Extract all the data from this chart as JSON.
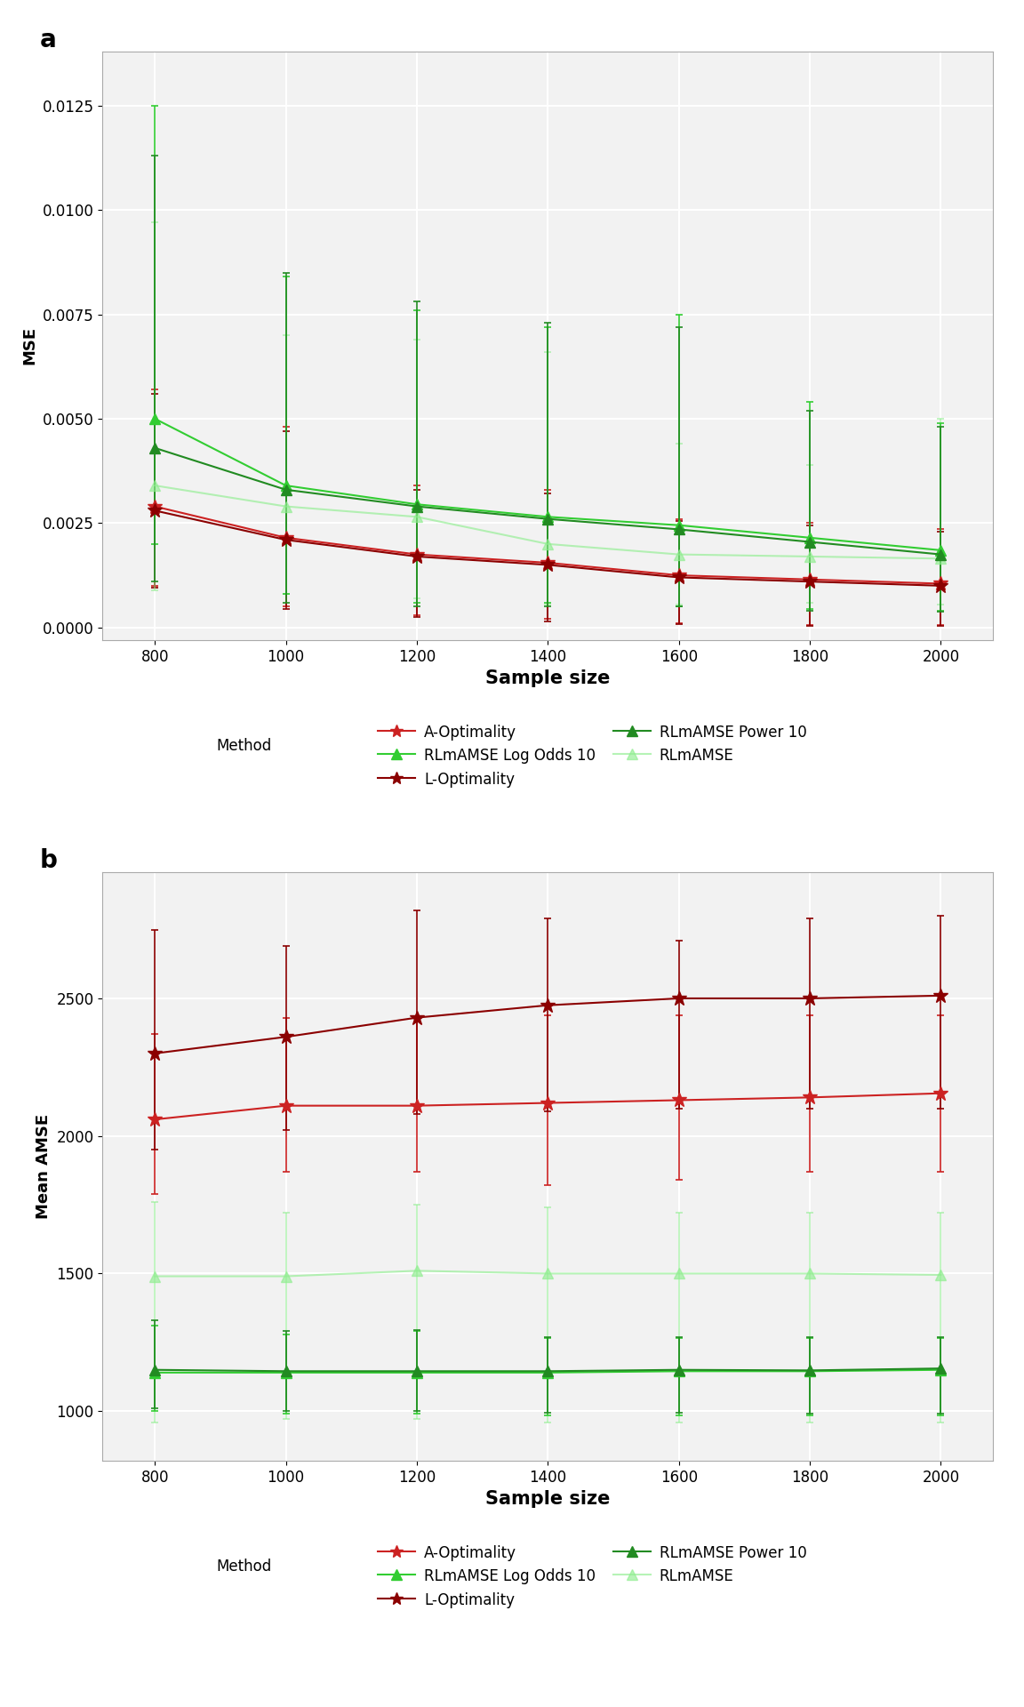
{
  "x": [
    800,
    1000,
    1200,
    1400,
    1600,
    1800,
    2000
  ],
  "panel_a": {
    "title": "a",
    "ylabel": "MSE",
    "xlabel": "Sample size",
    "ylim": [
      -0.0003,
      0.0138
    ],
    "yticks": [
      0.0,
      0.0025,
      0.005,
      0.0075,
      0.01,
      0.0125
    ],
    "series": {
      "A_Optimality": {
        "mean": [
          0.0029,
          0.00215,
          0.00175,
          0.00155,
          0.00125,
          0.00115,
          0.00105
        ],
        "lo": [
          0.001,
          0.0005,
          0.0003,
          0.0002,
          0.0001,
          5e-05,
          5e-05
        ],
        "hi": [
          0.0057,
          0.0048,
          0.0034,
          0.0033,
          0.0026,
          0.0025,
          0.00235
        ],
        "color": "#cc2222",
        "marker": "*",
        "markersize": 12,
        "linewidth": 1.5,
        "alpha": 1.0
      },
      "L_Optimality": {
        "mean": [
          0.0028,
          0.0021,
          0.0017,
          0.0015,
          0.0012,
          0.0011,
          0.001
        ],
        "lo": [
          0.00095,
          0.00045,
          0.00025,
          0.00015,
          8e-05,
          3e-05,
          3e-05
        ],
        "hi": [
          0.0056,
          0.0047,
          0.0033,
          0.0032,
          0.00255,
          0.00245,
          0.0023
        ],
        "color": "#8b0000",
        "marker": "*",
        "markersize": 12,
        "linewidth": 1.5,
        "alpha": 1.0
      },
      "RLmAMSE": {
        "mean": [
          0.0034,
          0.0029,
          0.00265,
          0.002,
          0.00175,
          0.0017,
          0.00165
        ],
        "lo": [
          0.0009,
          0.0008,
          0.0007,
          0.00055,
          0.00055,
          0.0006,
          0.00055
        ],
        "hi": [
          0.0097,
          0.007,
          0.0069,
          0.0066,
          0.0044,
          0.0039,
          0.005
        ],
        "color": "#90ee90",
        "marker": "^",
        "markersize": 9,
        "linewidth": 1.5,
        "alpha": 0.65
      },
      "RLmAMSE_LogOdds10": {
        "mean": [
          0.005,
          0.0034,
          0.00295,
          0.00265,
          0.00245,
          0.00215,
          0.00185
        ],
        "lo": [
          0.002,
          0.0008,
          0.0006,
          0.0006,
          0.0005,
          0.00045,
          0.0004
        ],
        "hi": [
          0.0125,
          0.0084,
          0.0076,
          0.0072,
          0.0075,
          0.0054,
          0.0049
        ],
        "color": "#32cd32",
        "marker": "^",
        "markersize": 9,
        "linewidth": 1.5,
        "alpha": 1.0
      },
      "RLmAMSE_Power10": {
        "mean": [
          0.0043,
          0.0033,
          0.0029,
          0.0026,
          0.00235,
          0.00205,
          0.00175
        ],
        "lo": [
          0.0011,
          0.0006,
          0.0005,
          0.0005,
          0.0005,
          0.0004,
          0.00038
        ],
        "hi": [
          0.0113,
          0.0085,
          0.0078,
          0.0073,
          0.0072,
          0.0052,
          0.0048
        ],
        "color": "#228b22",
        "marker": "^",
        "markersize": 9,
        "linewidth": 1.5,
        "alpha": 1.0
      }
    }
  },
  "panel_b": {
    "title": "b",
    "ylabel": "Mean AMSE",
    "xlabel": "Sample size",
    "ylim": [
      820,
      2960
    ],
    "yticks": [
      1000,
      1500,
      2000,
      2500
    ],
    "series": {
      "A_Optimality": {
        "mean": [
          2060,
          2110,
          2110,
          2120,
          2130,
          2140,
          2155
        ],
        "lo": [
          1790,
          1870,
          1870,
          1820,
          1840,
          1870,
          1870
        ],
        "hi": [
          2370,
          2430,
          2430,
          2440,
          2440,
          2440,
          2440
        ],
        "color": "#cc2222",
        "marker": "*",
        "markersize": 12,
        "linewidth": 1.5,
        "alpha": 1.0
      },
      "L_Optimality": {
        "mean": [
          2300,
          2360,
          2430,
          2475,
          2500,
          2500,
          2510
        ],
        "lo": [
          1950,
          2020,
          2080,
          2090,
          2100,
          2100,
          2100
        ],
        "hi": [
          2750,
          2690,
          2820,
          2790,
          2710,
          2790,
          2800
        ],
        "color": "#8b0000",
        "marker": "*",
        "markersize": 12,
        "linewidth": 1.5,
        "alpha": 1.0
      },
      "RLmAMSE": {
        "mean": [
          1490,
          1490,
          1510,
          1500,
          1500,
          1500,
          1495
        ],
        "lo": [
          960,
          970,
          970,
          960,
          960,
          960,
          960
        ],
        "hi": [
          1760,
          1720,
          1750,
          1740,
          1720,
          1720,
          1720
        ],
        "color": "#90ee90",
        "marker": "^",
        "markersize": 9,
        "linewidth": 1.5,
        "alpha": 0.65
      },
      "RLmAMSE_LogOdds10": {
        "mean": [
          1140,
          1140,
          1140,
          1140,
          1145,
          1145,
          1150
        ],
        "lo": [
          1000,
          990,
          990,
          985,
          985,
          985,
          985
        ],
        "hi": [
          1310,
          1280,
          1290,
          1265,
          1265,
          1265,
          1265
        ],
        "color": "#32cd32",
        "marker": "^",
        "markersize": 9,
        "linewidth": 1.5,
        "alpha": 1.0
      },
      "RLmAMSE_Power10": {
        "mean": [
          1150,
          1145,
          1145,
          1145,
          1150,
          1148,
          1155
        ],
        "lo": [
          1010,
          1000,
          1000,
          995,
          995,
          990,
          990
        ],
        "hi": [
          1330,
          1290,
          1295,
          1270,
          1270,
          1270,
          1270
        ],
        "color": "#228b22",
        "marker": "^",
        "markersize": 9,
        "linewidth": 1.5,
        "alpha": 1.0
      }
    }
  },
  "legend_labels": {
    "A_Optimality": "A-Optimality",
    "L_Optimality": "L-Optimality",
    "RLmAMSE": "RLmAMSE",
    "RLmAMSE_LogOdds10": "RLmAMSE Log Odds 10",
    "RLmAMSE_Power10": "RLmAMSE Power 10"
  },
  "background_color": "#f2f2f2",
  "grid_color": "#ffffff",
  "capsize": 3,
  "elinewidth": 1.2
}
